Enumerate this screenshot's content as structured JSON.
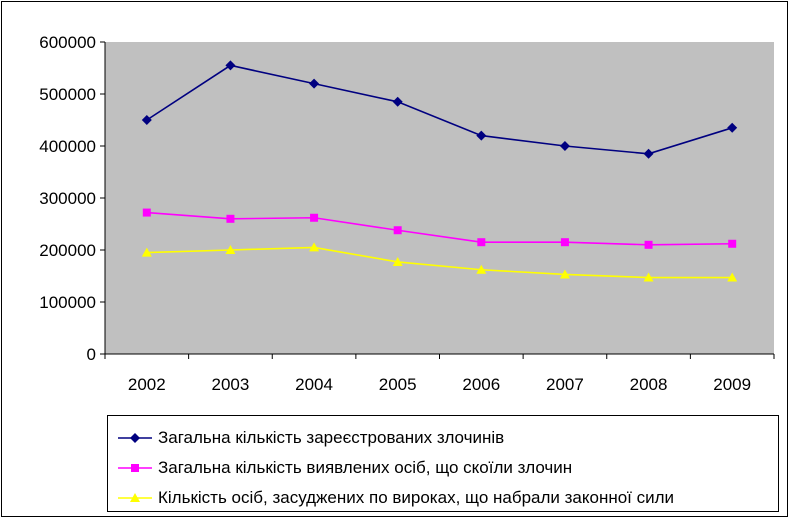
{
  "chart_data": {
    "type": "line",
    "title": "",
    "xlabel": "",
    "ylabel": "",
    "categories": [
      "2002",
      "2003",
      "2004",
      "2005",
      "2006",
      "2007",
      "2008",
      "2009"
    ],
    "ylim": [
      0,
      600000
    ],
    "yticks": [
      "0",
      "100000",
      "200000",
      "300000",
      "400000",
      "500000",
      "600000"
    ],
    "grid": false,
    "plot_background": "#c0c0c0",
    "legend_position": "bottom",
    "series": [
      {
        "name": "Загальна кількість зареєстрованих злочинів",
        "color": "#000080",
        "marker": "diamond",
        "values": [
          450000,
          555000,
          520000,
          485000,
          420000,
          400000,
          385000,
          435000
        ]
      },
      {
        "name": "Загальна кількість виявлених осіб, що скоїли злочин",
        "color": "#ff00ff",
        "marker": "square",
        "values": [
          272000,
          260000,
          262000,
          238000,
          215000,
          215000,
          210000,
          212000
        ]
      },
      {
        "name": "Кількість осіб, засуджених по вироках, що набрали законної сили",
        "color": "#ffff00",
        "marker": "triangle",
        "values": [
          195000,
          200000,
          205000,
          177000,
          162000,
          153000,
          147000,
          147000
        ]
      }
    ]
  }
}
